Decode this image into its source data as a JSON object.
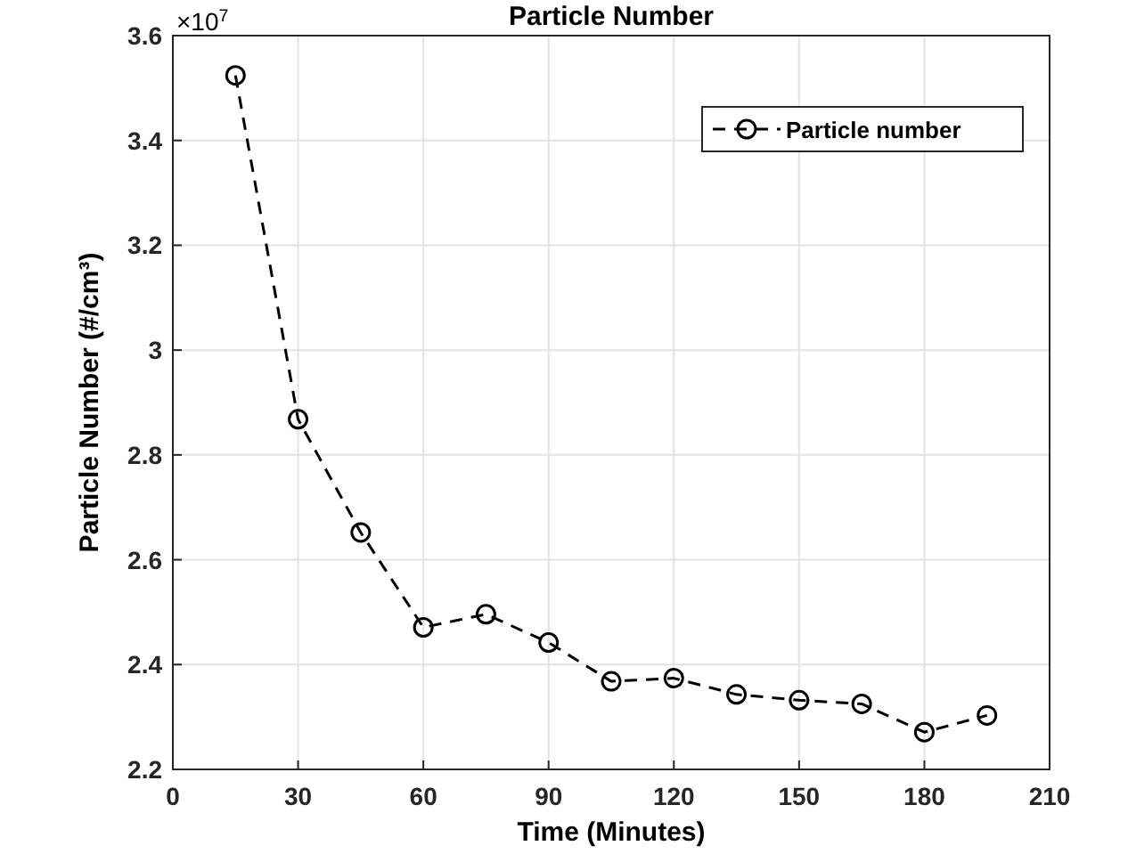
{
  "chart_data": {
    "type": "line",
    "title": "Particle Number",
    "xlabel": "Time (Minutes)",
    "ylabel": "Particle Number (#/cm³)",
    "annotations": [
      "×10$^{7}$"
    ],
    "x": [
      15,
      30,
      45,
      60,
      75,
      90,
      105,
      120,
      135,
      150,
      165,
      180,
      195
    ],
    "series": [
      {
        "name": "Particle number",
        "color": "#000000",
        "values": [
          3.524,
          2.868,
          2.652,
          2.471,
          2.496,
          2.442,
          2.368,
          2.374,
          2.343,
          2.332,
          2.325,
          2.271,
          2.303
        ]
      }
    ],
    "xlim": [
      0,
      210
    ],
    "xticks": [
      0,
      30,
      60,
      90,
      120,
      150,
      180,
      210
    ],
    "ylim": [
      2.2,
      3.6
    ],
    "yticks": [
      2.2,
      2.4,
      2.6,
      2.8,
      3,
      3.2,
      3.4,
      3.6
    ],
    "grid": true,
    "legend": "top right",
    "marker": "circle",
    "line_style": "dashed"
  }
}
